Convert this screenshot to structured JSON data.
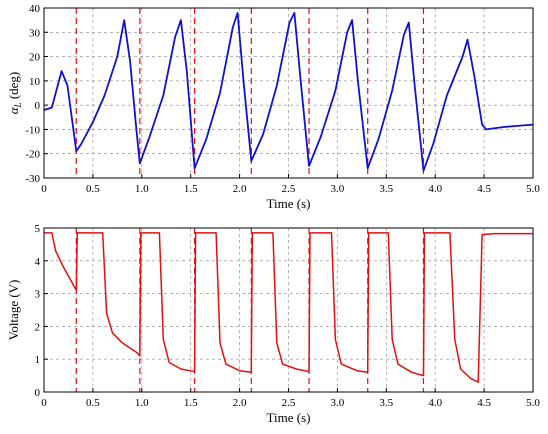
{
  "chart_data": [
    {
      "type": "line",
      "xlabel": "Time (s)",
      "ylabel": "α_L (deg)",
      "ylabel_main": "α",
      "ylabel_sub": "L",
      "ylabel_unit": " (deg)",
      "xlim": [
        0,
        5
      ],
      "ylim": [
        -30,
        40
      ],
      "xticks": [
        "0",
        "0.5",
        "1.0",
        "1.5",
        "2.0",
        "2.5",
        "3.0",
        "3.5",
        "4.0",
        "4.5",
        "5.0"
      ],
      "yticks": [
        "-30",
        "-20",
        "-10",
        "0",
        "10",
        "20",
        "30",
        "40"
      ],
      "grid": true,
      "series": [
        {
          "color": "#1010d0",
          "x": [
            0,
            0.08,
            0.18,
            0.24,
            0.33,
            0.38,
            0.5,
            0.62,
            0.75,
            0.82,
            0.88,
            0.94,
            0.98,
            1.08,
            1.22,
            1.34,
            1.4,
            1.46,
            1.54,
            1.66,
            1.8,
            1.93,
            1.98,
            2.04,
            2.12,
            2.24,
            2.38,
            2.51,
            2.56,
            2.62,
            2.71,
            2.83,
            2.98,
            3.1,
            3.15,
            3.21,
            3.31,
            3.42,
            3.56,
            3.68,
            3.73,
            3.79,
            3.88,
            3.98,
            4.12,
            4.28,
            4.33,
            4.4,
            4.48,
            4.52,
            4.7,
            5.0
          ],
          "y": [
            -2,
            -1,
            14,
            8,
            -19,
            -16,
            -7,
            4,
            20,
            35,
            18,
            -8,
            -24,
            -13,
            4,
            28,
            35,
            14,
            -26,
            -14,
            5,
            32,
            38,
            10,
            -23,
            -12,
            8,
            34,
            38,
            12,
            -25,
            -13,
            6,
            30,
            35,
            10,
            -26,
            -14,
            6,
            29,
            34,
            8,
            -27,
            -16,
            4,
            20,
            27,
            12,
            -8,
            -10,
            -9,
            -8
          ]
        }
      ],
      "vlines": [
        0.33,
        0.98,
        1.54,
        2.12,
        2.71,
        3.31,
        3.88
      ],
      "vline_color": "#e01010"
    },
    {
      "type": "line",
      "xlabel": "Time (s)",
      "ylabel": "Voltage (V)",
      "xlim": [
        0,
        5
      ],
      "ylim": [
        0,
        5
      ],
      "xticks": [
        "0",
        "0.5",
        "1.0",
        "1.5",
        "2.0",
        "2.5",
        "3.0",
        "3.5",
        "4.0",
        "4.5",
        "5.0"
      ],
      "yticks": [
        "0",
        "1",
        "2",
        "3",
        "4",
        "5"
      ],
      "grid": true,
      "series": [
        {
          "color": "#e01010",
          "x": [
            0,
            0.08,
            0.12,
            0.2,
            0.33,
            0.34,
            0.42,
            0.6,
            0.64,
            0.7,
            0.8,
            0.95,
            0.98,
            0.99,
            1.05,
            1.18,
            1.22,
            1.28,
            1.4,
            1.54,
            1.55,
            1.6,
            1.76,
            1.8,
            1.86,
            2.0,
            2.12,
            2.13,
            2.18,
            2.34,
            2.38,
            2.44,
            2.58,
            2.71,
            2.72,
            2.76,
            2.94,
            2.98,
            3.04,
            3.2,
            3.31,
            3.32,
            3.38,
            3.52,
            3.56,
            3.62,
            3.76,
            3.88,
            3.89,
            3.95,
            4.15,
            4.2,
            4.26,
            4.36,
            4.44,
            4.48,
            4.6,
            5.0
          ],
          "y": [
            4.85,
            4.85,
            4.3,
            3.8,
            3.1,
            4.85,
            4.85,
            4.85,
            2.4,
            1.8,
            1.5,
            1.2,
            1.1,
            4.85,
            4.85,
            4.85,
            1.6,
            0.9,
            0.7,
            0.62,
            4.85,
            4.85,
            4.85,
            1.5,
            0.85,
            0.65,
            0.6,
            4.85,
            4.85,
            4.85,
            1.5,
            0.85,
            0.7,
            0.62,
            4.85,
            4.85,
            4.85,
            1.6,
            0.85,
            0.65,
            0.6,
            4.85,
            4.85,
            4.85,
            1.6,
            0.85,
            0.6,
            0.5,
            4.85,
            4.85,
            4.85,
            1.6,
            0.7,
            0.42,
            0.3,
            4.8,
            4.83,
            4.83
          ]
        }
      ],
      "vlines": [
        0.33,
        0.98,
        1.54,
        2.12,
        2.71,
        3.31,
        3.88
      ],
      "vline_color": "#e01010"
    }
  ]
}
